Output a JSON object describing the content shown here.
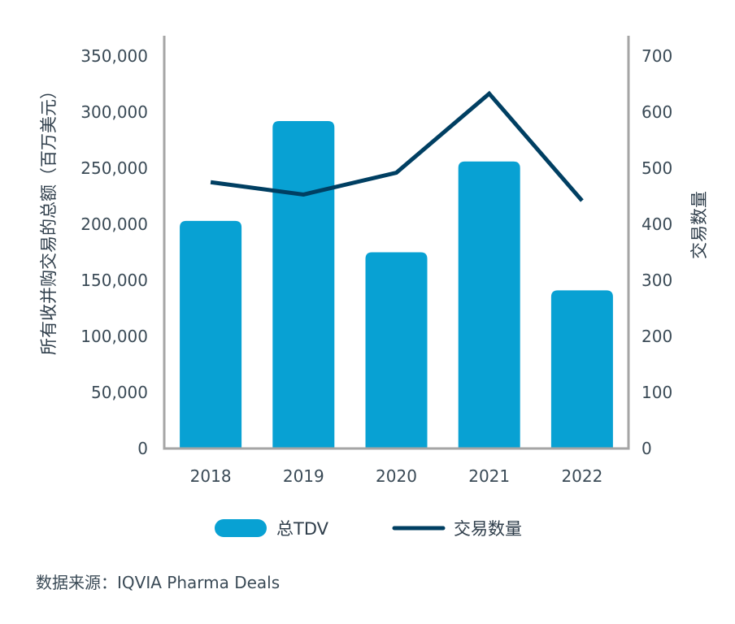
{
  "chart_data": {
    "type": "bar",
    "categories": [
      "2018",
      "2019",
      "2020",
      "2021",
      "2022"
    ],
    "series": [
      {
        "name": "总TDV",
        "type": "bar",
        "axis": "left",
        "color": "#08a1d3",
        "values": [
          203000,
          292000,
          175000,
          256000,
          141000
        ]
      },
      {
        "name": "交易数量",
        "type": "line",
        "axis": "right",
        "color": "#003f62",
        "values": [
          475,
          453,
          492,
          633,
          442
        ]
      }
    ],
    "ylabel": "所有收并购交易的总额（百万美元）",
    "y2label": "交易数量",
    "ylim": [
      0,
      350000
    ],
    "y2lim": [
      0,
      700
    ],
    "yticks": [
      "0",
      "50,000",
      "100,000",
      "150,000",
      "200,000",
      "250,000",
      "300,000",
      "350,000"
    ],
    "y2ticks": [
      "0",
      "100",
      "200",
      "300",
      "400",
      "500",
      "600",
      "700"
    ],
    "legend_position": "bottom",
    "grid": false,
    "axis_color": "#a5a5a5"
  },
  "source": "数据来源：IQVIA Pharma Deals"
}
